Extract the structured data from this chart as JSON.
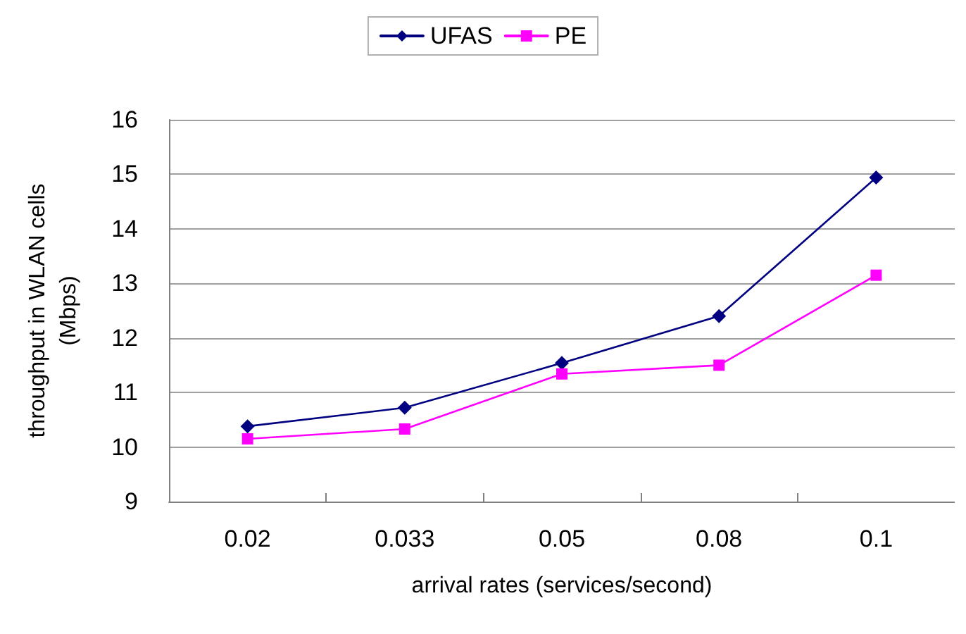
{
  "chart_data": {
    "type": "line",
    "xlabel": "arrival rates (services/second)",
    "ylabel": "throughput in WLAN cells\n(Mbps)",
    "categories": [
      "0.02",
      "0.033",
      "0.05",
      "0.08",
      "0.1"
    ],
    "series": [
      {
        "name": "UFAS",
        "color": "#000080",
        "marker": "diamond",
        "values": [
          10.38,
          10.72,
          11.54,
          12.4,
          14.94
        ]
      },
      {
        "name": "PE",
        "color": "#ff00ff",
        "marker": "square",
        "values": [
          10.15,
          10.33,
          11.34,
          11.5,
          13.15
        ]
      }
    ],
    "ylim": [
      9,
      16
    ],
    "yticks": [
      9,
      10,
      11,
      12,
      13,
      14,
      15,
      16
    ],
    "grid": "y",
    "legend": "top",
    "line_style": "solid"
  }
}
